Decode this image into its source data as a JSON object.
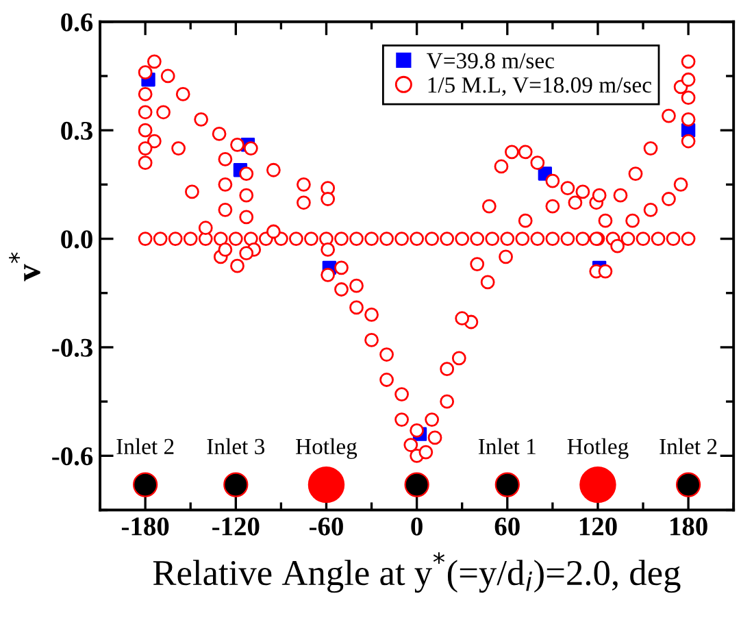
{
  "chart_data": {
    "type": "scatter",
    "xlabel": "Relative Angle at y$^{*}$(=y/d$_{i}$)=2.0, deg",
    "ylabel": "v$^{*}$",
    "xlim": [
      -210,
      210
    ],
    "ylim": [
      -0.75,
      0.6
    ],
    "xticks": [
      -180,
      -120,
      -60,
      0,
      60,
      120,
      180
    ],
    "yticks": [
      {
        "value": -0.6,
        "label": "-0.6"
      },
      {
        "value": -0.3,
        "label": "-0.3"
      },
      {
        "value": 0,
        "label": "0.0"
      },
      {
        "value": 0.3,
        "label": "0.3"
      },
      {
        "value": 0.6,
        "label": "0.6"
      }
    ],
    "grid": false,
    "legend": "top right",
    "series": [
      {
        "name": "V=39.8 m/sec",
        "color": "#0000ff",
        "marker": "square",
        "x": [
          -178,
          -112,
          -117,
          -58,
          2,
          85,
          121,
          180
        ],
        "values": [
          0.44,
          0.26,
          0.19,
          -0.08,
          -0.54,
          0.18,
          -0.08,
          0.3
        ]
      },
      {
        "name": "1/5 M.L, V=18.09 m/sec",
        "color": "#ff0000",
        "marker": "circle",
        "x": [
          -180,
          -170,
          -160,
          -150,
          -140,
          -130,
          -120,
          -110,
          -100,
          -90,
          -80,
          -70,
          -60,
          -50,
          -40,
          -30,
          -20,
          -10,
          0,
          10,
          20,
          30,
          40,
          50,
          60,
          70,
          80,
          90,
          100,
          110,
          120,
          130,
          140,
          150,
          160,
          170,
          180,
          -180,
          -174,
          -165,
          -155,
          -143,
          -131,
          -119,
          -110,
          -95,
          -75,
          -59,
          -180,
          -174,
          -168,
          -158,
          -149,
          -140,
          -130,
          -119,
          -108,
          -95,
          -75,
          -59,
          -180,
          -180,
          -180,
          -180,
          -127,
          -127,
          -127,
          -127,
          -113,
          -113,
          -113,
          -113,
          -59,
          -59,
          -50,
          -40,
          -30,
          -20,
          -10,
          -4,
          0,
          6,
          12,
          20,
          28,
          36,
          47,
          59,
          72,
          90,
          105,
          119,
          -50,
          -40,
          -30,
          -20,
          -10,
          0,
          10,
          20,
          30,
          40,
          48,
          56,
          63,
          72,
          80,
          90,
          100,
          110,
          121,
          119,
          125,
          135,
          145,
          155,
          167,
          175,
          180,
          119,
          125,
          133,
          143,
          155,
          167,
          175,
          180,
          180,
          180,
          180
        ],
        "values": [
          0,
          0,
          0,
          0,
          0,
          0,
          0,
          0,
          0,
          0,
          0,
          0,
          0,
          0,
          0,
          0,
          0,
          0,
          0,
          0,
          0,
          0,
          0,
          0,
          0,
          0,
          0,
          0,
          0,
          0,
          0,
          0,
          0,
          0,
          0,
          0,
          0,
          0.46,
          0.49,
          0.45,
          0.4,
          0.33,
          0.29,
          0.26,
          0.25,
          0.19,
          0.15,
          0.14,
          0.21,
          0.27,
          0.35,
          0.25,
          0.13,
          0.03,
          -0.05,
          -0.075,
          -0.03,
          0.02,
          0.1,
          0.11,
          0.25,
          0.3,
          0.35,
          0.4,
          0.22,
          0.15,
          0.08,
          -0.03,
          0.18,
          0.12,
          0.06,
          -0.04,
          -0.03,
          -0.1,
          -0.14,
          -0.19,
          -0.28,
          -0.39,
          -0.5,
          -0.57,
          -0.6,
          -0.59,
          -0.55,
          -0.45,
          -0.33,
          -0.23,
          -0.12,
          -0.05,
          0.05,
          0.09,
          0.1,
          0.1,
          -0.08,
          -0.13,
          -0.21,
          -0.32,
          -0.43,
          -0.53,
          -0.5,
          -0.36,
          -0.22,
          -0.07,
          0.09,
          0.2,
          0.24,
          0.24,
          0.21,
          0.16,
          0.14,
          0.13,
          0.12,
          0.0,
          0.05,
          0.12,
          0.18,
          0.25,
          0.34,
          0.42,
          0.49,
          -0.09,
          -0.09,
          -0.02,
          0.05,
          0.08,
          0.11,
          0.15,
          0.27,
          0.33,
          0.39,
          0.44
        ]
      }
    ],
    "annotations": [
      {
        "text": "Inlet 2",
        "x": -180,
        "y": -0.68
      },
      {
        "text": "Inlet 3",
        "x": -120,
        "y": -0.68
      },
      {
        "text": "Hotleg",
        "x": -60,
        "y": -0.68
      },
      {
        "text": "Inlet 1",
        "x": 60,
        "y": -0.68
      },
      {
        "text": "Hotleg",
        "x": 120,
        "y": -0.68
      },
      {
        "text": "Inlet 2",
        "x": 180,
        "y": -0.68
      }
    ]
  }
}
